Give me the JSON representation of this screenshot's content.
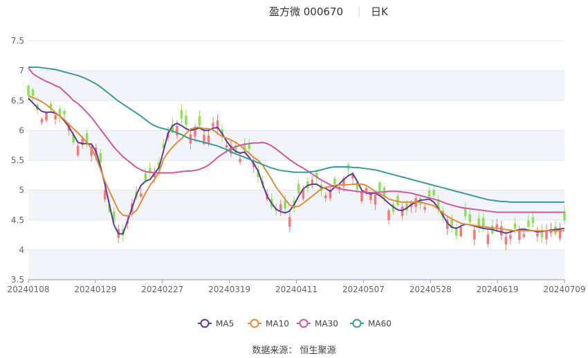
{
  "chart_data": {
    "type": "candlestick",
    "title": "盈方微 000670",
    "period": "日K",
    "ylim": [
      3.5,
      7.5
    ],
    "yticks": [
      "3.5",
      "4",
      "4.5",
      "5",
      "5.5",
      "6",
      "6.5",
      "7",
      "7.5"
    ],
    "xtick_labels": [
      "20240108",
      "20240129",
      "20240227",
      "20240319",
      "20240411",
      "20240507",
      "20240528",
      "20240619",
      "20240709"
    ],
    "num_bars": 120,
    "grid": true,
    "legend_position": "bottom-center",
    "up_color": "#f47a7a",
    "down_color": "#8ee05a",
    "series": [
      {
        "name": "MA5",
        "color": "#5b3a9e",
        "values": [
          6.54,
          6.46,
          6.38,
          6.32,
          6.3,
          6.31,
          6.29,
          6.24,
          6.16,
          6.06,
          5.93,
          5.8,
          5.78,
          5.78,
          5.77,
          5.65,
          5.4,
          5.1,
          4.75,
          4.42,
          4.27,
          4.27,
          4.48,
          4.7,
          4.93,
          5.08,
          5.15,
          5.18,
          5.28,
          5.38,
          5.66,
          5.95,
          6.08,
          6.12,
          6.08,
          6.03,
          6.0,
          6.02,
          6.04,
          6.0,
          6.0,
          6.04,
          6.05,
          5.95,
          5.82,
          5.72,
          5.65,
          5.62,
          5.64,
          5.55,
          5.45,
          5.32,
          5.1,
          4.9,
          4.78,
          4.68,
          4.64,
          4.62,
          4.65,
          4.76,
          4.9,
          5.02,
          5.08,
          5.1,
          5.1,
          5.05,
          5.03,
          4.98,
          5.05,
          5.1,
          5.18,
          5.24,
          5.28,
          5.15,
          5.0,
          4.95,
          4.94,
          4.95,
          4.91,
          4.85,
          4.78,
          4.72,
          4.67,
          4.66,
          4.7,
          4.76,
          4.8,
          4.83,
          4.84,
          4.85,
          4.8,
          4.7,
          4.58,
          4.45,
          4.38,
          4.36,
          4.4,
          4.43,
          4.42,
          4.4,
          4.38,
          4.36,
          4.35,
          4.34,
          4.32,
          4.3,
          4.28,
          4.3,
          4.32,
          4.34,
          4.35,
          4.33,
          4.32,
          4.3,
          4.31,
          4.32,
          4.33,
          4.34,
          4.35,
          4.36
        ]
      },
      {
        "name": "MA10",
        "color": "#e38a3c",
        "values": [
          6.58,
          6.55,
          6.52,
          6.48,
          6.43,
          6.37,
          6.3,
          6.24,
          6.18,
          6.1,
          6.03,
          5.96,
          5.88,
          5.8,
          5.7,
          5.55,
          5.35,
          5.15,
          4.98,
          4.82,
          4.66,
          4.58,
          4.57,
          4.6,
          4.66,
          4.8,
          4.95,
          5.08,
          5.18,
          5.3,
          5.52,
          5.63,
          5.72,
          5.8,
          5.86,
          5.95,
          6.02,
          6.05,
          6.05,
          6.03,
          6.03,
          6.01,
          5.95,
          5.9,
          5.87,
          5.84,
          5.8,
          5.75,
          5.68,
          5.62,
          5.55,
          5.5,
          5.42,
          5.3,
          5.18,
          5.05,
          4.95,
          4.85,
          4.75,
          4.72,
          4.73,
          4.78,
          4.84,
          4.9,
          4.96,
          5.02,
          5.05,
          5.06,
          5.08,
          5.09,
          5.09,
          5.09,
          5.1,
          5.1,
          5.1,
          5.08,
          5.03,
          4.98,
          4.94,
          4.9,
          4.85,
          4.83,
          4.81,
          4.8,
          4.8,
          4.8,
          4.8,
          4.8,
          4.78,
          4.76,
          4.74,
          4.68,
          4.62,
          4.56,
          4.52,
          4.48,
          4.45,
          4.43,
          4.42,
          4.41,
          4.4,
          4.39,
          4.38,
          4.37,
          4.36,
          4.35,
          4.34,
          4.33,
          4.32,
          4.32,
          4.32,
          4.32,
          4.32,
          4.32,
          4.32,
          4.32,
          4.32,
          4.32,
          4.32,
          4.32
        ]
      },
      {
        "name": "MA30",
        "color": "#d0579f",
        "values": [
          7.05,
          6.95,
          6.9,
          6.86,
          6.82,
          6.79,
          6.75,
          6.72,
          6.65,
          6.58,
          6.5,
          6.45,
          6.38,
          6.3,
          6.22,
          6.12,
          6.02,
          5.92,
          5.82,
          5.72,
          5.64,
          5.56,
          5.5,
          5.44,
          5.38,
          5.34,
          5.31,
          5.3,
          5.29,
          5.29,
          5.29,
          5.29,
          5.29,
          5.3,
          5.31,
          5.32,
          5.32,
          5.33,
          5.35,
          5.38,
          5.42,
          5.48,
          5.55,
          5.6,
          5.65,
          5.7,
          5.73,
          5.75,
          5.77,
          5.78,
          5.79,
          5.79,
          5.8,
          5.78,
          5.74,
          5.69,
          5.63,
          5.57,
          5.51,
          5.46,
          5.41,
          5.37,
          5.32,
          5.27,
          5.22,
          5.17,
          5.13,
          5.09,
          5.05,
          5.03,
          5.01,
          5.0,
          4.99,
          4.98,
          4.97,
          4.96,
          4.96,
          4.96,
          4.97,
          4.97,
          4.98,
          4.98,
          4.98,
          4.97,
          4.96,
          4.95,
          4.93,
          4.91,
          4.89,
          4.87,
          4.85,
          4.83,
          4.8,
          4.77,
          4.75,
          4.73,
          4.71,
          4.7,
          4.69,
          4.68,
          4.67,
          4.66,
          4.65,
          4.64,
          4.63,
          4.63,
          4.63,
          4.63,
          4.63,
          4.63,
          4.63,
          4.63,
          4.63,
          4.63,
          4.63,
          4.63,
          4.63,
          4.63,
          4.63,
          4.63
        ]
      },
      {
        "name": "MA60",
        "color": "#3a9a9a",
        "values": [
          7.06,
          7.06,
          7.06,
          7.05,
          7.04,
          7.03,
          7.02,
          7.0,
          6.98,
          6.96,
          6.94,
          6.92,
          6.89,
          6.86,
          6.82,
          6.78,
          6.73,
          6.67,
          6.61,
          6.55,
          6.49,
          6.44,
          6.39,
          6.34,
          6.29,
          6.24,
          6.18,
          6.12,
          6.08,
          6.05,
          6.03,
          6.01,
          5.99,
          5.96,
          5.93,
          5.89,
          5.86,
          5.84,
          5.82,
          5.8,
          5.78,
          5.76,
          5.74,
          5.71,
          5.68,
          5.64,
          5.61,
          5.58,
          5.55,
          5.52,
          5.49,
          5.46,
          5.43,
          5.4,
          5.37,
          5.35,
          5.33,
          5.32,
          5.31,
          5.3,
          5.3,
          5.3,
          5.3,
          5.31,
          5.32,
          5.34,
          5.36,
          5.38,
          5.39,
          5.39,
          5.39,
          5.39,
          5.38,
          5.38,
          5.37,
          5.36,
          5.35,
          5.34,
          5.32,
          5.3,
          5.28,
          5.26,
          5.24,
          5.22,
          5.2,
          5.18,
          5.16,
          5.14,
          5.12,
          5.1,
          5.08,
          5.06,
          5.04,
          5.02,
          5.0,
          4.98,
          4.96,
          4.94,
          4.92,
          4.9,
          4.88,
          4.86,
          4.84,
          4.83,
          4.82,
          4.81,
          4.81,
          4.8,
          4.8,
          4.8,
          4.8,
          4.8,
          4.8,
          4.8,
          4.8,
          4.8,
          4.8,
          4.8,
          4.8,
          4.8
        ]
      }
    ],
    "source": "数据来源：  恒生聚源"
  }
}
